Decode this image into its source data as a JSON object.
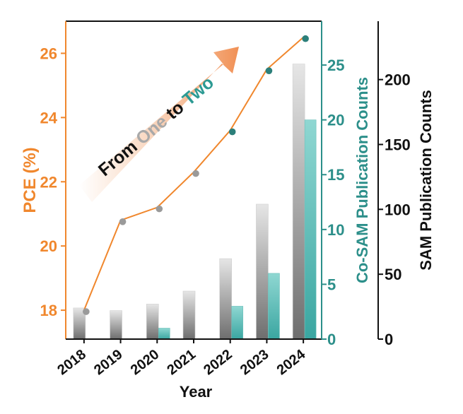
{
  "chart_data": {
    "type": "bar",
    "categories": [
      "2018",
      "2019",
      "2020",
      "2021",
      "2022",
      "2023",
      "2024"
    ],
    "xlabel": "Year",
    "pce": {
      "label": "PCE (%)",
      "ylim": [
        17.1,
        27
      ],
      "ticks": [
        18,
        20,
        22,
        24,
        26
      ],
      "values": [
        18.0,
        20.8,
        21.2,
        22.3,
        23.6,
        25.5,
        26.5
      ],
      "colors": [
        "#9a9a9a",
        "#9a9a9a",
        "#9a9a9a",
        "#9a9a9a",
        "#2c7f7a",
        "#2c7f7a",
        "#2c7f7a"
      ]
    },
    "sam": {
      "label": "SAM Publication Counts",
      "ylim": [
        0,
        245
      ],
      "ticks": [
        0,
        50,
        100,
        150,
        200
      ],
      "values": [
        24,
        22,
        27,
        37,
        62,
        104,
        212
      ]
    },
    "cosam": {
      "label": "Co-SAM Publication Counts",
      "ylim": [
        0,
        29
      ],
      "ticks": [
        0,
        5,
        10,
        15,
        20,
        25
      ],
      "values": [
        0,
        0,
        1,
        0,
        3,
        6,
        20
      ]
    },
    "annotation": {
      "from": "From ",
      "one": "One",
      "to": " to ",
      "two": "Two"
    },
    "colors": {
      "pce": "#f0872d",
      "cosam": "#2c8f8a",
      "sam": "#111111",
      "gray_marker": "#9a9a9a",
      "teal_marker": "#2c7f7a",
      "one_text": "#a9a9a9",
      "two_text": "#2c9a93"
    }
  }
}
